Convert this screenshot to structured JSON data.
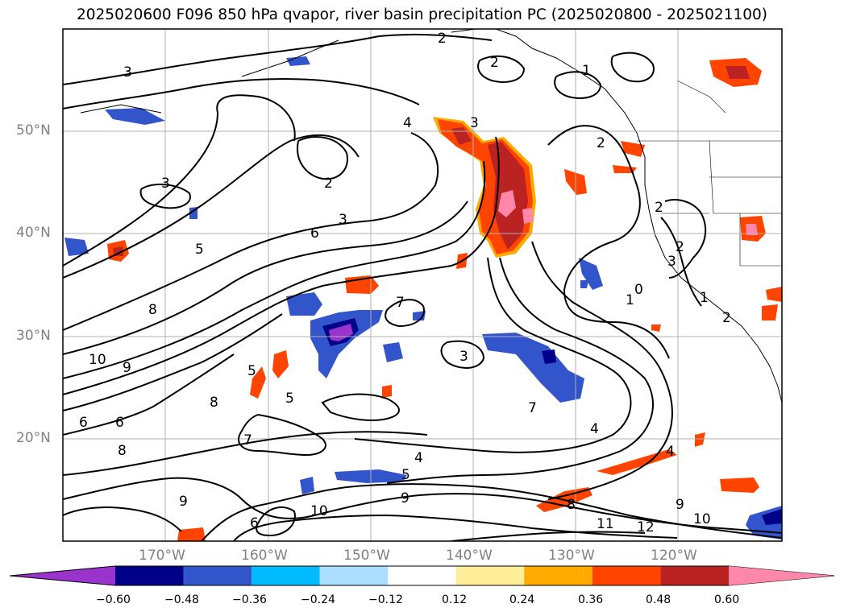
{
  "title": "2025020600 F096 850 hPa qvapor, river basin precipitation PC (2025020800 - 2025021100)",
  "axes": {
    "lat_labels": [
      "50°N",
      "40°N",
      "30°N",
      "20°N"
    ],
    "lon_labels": [
      "170°W",
      "160°W",
      "150°W",
      "140°W",
      "130°W",
      "120°W"
    ]
  },
  "contour_labels": [
    "2",
    "2",
    "1",
    "3",
    "4",
    "3",
    "2",
    "3",
    "2",
    "3",
    "6",
    "5",
    "8",
    "10",
    "9",
    "7",
    "5",
    "6",
    "8",
    "5",
    "7",
    "6",
    "8",
    "9",
    "4",
    "5",
    "10",
    "6",
    "9",
    "7",
    "4",
    "3",
    "4",
    "8",
    "11",
    "12",
    "10",
    "9",
    "1",
    "2",
    "2",
    "3",
    "1",
    "0",
    "2"
  ],
  "colorbar": {
    "colors": [
      "#9933cc",
      "#000088",
      "#3355cc",
      "#00bbff",
      "#aaddff",
      "#ffffff",
      "#ffee99",
      "#ffaa00",
      "#ff4400",
      "#bb2222",
      "#ff88aa"
    ],
    "tick_labels": [
      "−0.60",
      "−0.48",
      "−0.36",
      "−0.24",
      "−0.12",
      "0.12",
      "0.24",
      "0.36",
      "0.48",
      "0.60"
    ]
  }
}
